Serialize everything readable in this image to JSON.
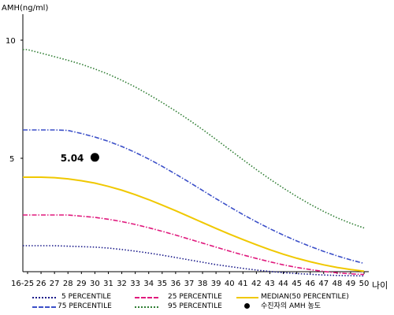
{
  "chart_data": {
    "type": "line",
    "ylabel": "AMH(ng/ml)",
    "xlabel": "나이",
    "y_ticks": [
      "5",
      "10"
    ],
    "ylim": [
      0,
      10.8
    ],
    "categories": [
      "16-25",
      "26",
      "27",
      "28",
      "29",
      "30",
      "31",
      "32",
      "33",
      "34",
      "35",
      "36",
      "37",
      "38",
      "39",
      "40",
      "41",
      "42",
      "43",
      "44",
      "45",
      "46",
      "47",
      "48",
      "49",
      "50"
    ],
    "series": [
      {
        "name": "5 PERCENTILE",
        "color": "#1a1a8a",
        "dash": "1.5,2.2",
        "values": [
          1.3,
          1.3,
          1.3,
          1.28,
          1.26,
          1.24,
          1.2,
          1.14,
          1.07,
          0.99,
          0.9,
          0.8,
          0.7,
          0.6,
          0.5,
          0.42,
          0.34,
          0.27,
          0.21,
          0.16,
          0.12,
          0.09,
          0.06,
          0.04,
          0.03,
          0.02
        ]
      },
      {
        "name": "25 PERCENTILE",
        "color": "#e0197d",
        "dash": "6,2,1.5,2",
        "values": [
          2.6,
          2.6,
          2.6,
          2.6,
          2.55,
          2.5,
          2.42,
          2.32,
          2.2,
          2.06,
          1.91,
          1.75,
          1.58,
          1.41,
          1.24,
          1.07,
          0.91,
          0.76,
          0.62,
          0.49,
          0.38,
          0.29,
          0.21,
          0.15,
          0.11,
          0.08
        ]
      },
      {
        "name": "MEDIAN(50 PERCENTILE)",
        "color": "#f0c800",
        "dash": "",
        "values": [
          4.2,
          4.2,
          4.18,
          4.13,
          4.05,
          3.95,
          3.81,
          3.65,
          3.46,
          3.25,
          3.02,
          2.78,
          2.53,
          2.28,
          2.03,
          1.79,
          1.56,
          1.34,
          1.13,
          0.94,
          0.77,
          0.62,
          0.49,
          0.38,
          0.29,
          0.22
        ]
      },
      {
        "name": "75 PERCENTILE",
        "color": "#3b4fc8",
        "dash": "6,2,1.5,2",
        "values": [
          6.2,
          6.2,
          6.2,
          6.18,
          6.05,
          5.9,
          5.72,
          5.5,
          5.25,
          4.97,
          4.66,
          4.33,
          3.99,
          3.64,
          3.29,
          2.95,
          2.62,
          2.31,
          2.02,
          1.75,
          1.5,
          1.27,
          1.06,
          0.87,
          0.7,
          0.55
        ]
      },
      {
        "name": "95 PERCENTILE",
        "color": "#2e7d32",
        "dash": "1.5,2.2",
        "values": [
          9.6,
          9.45,
          9.3,
          9.15,
          8.98,
          8.78,
          8.56,
          8.3,
          8.02,
          7.7,
          7.36,
          7.0,
          6.62,
          6.22,
          5.8,
          5.37,
          4.94,
          4.52,
          4.12,
          3.74,
          3.38,
          3.05,
          2.75,
          2.48,
          2.25,
          2.05
        ]
      }
    ],
    "patient_point": {
      "x": "30",
      "value": 5.04,
      "label": "5.04",
      "legend": "수진자의 AMH 농도",
      "color": "#000000"
    }
  }
}
